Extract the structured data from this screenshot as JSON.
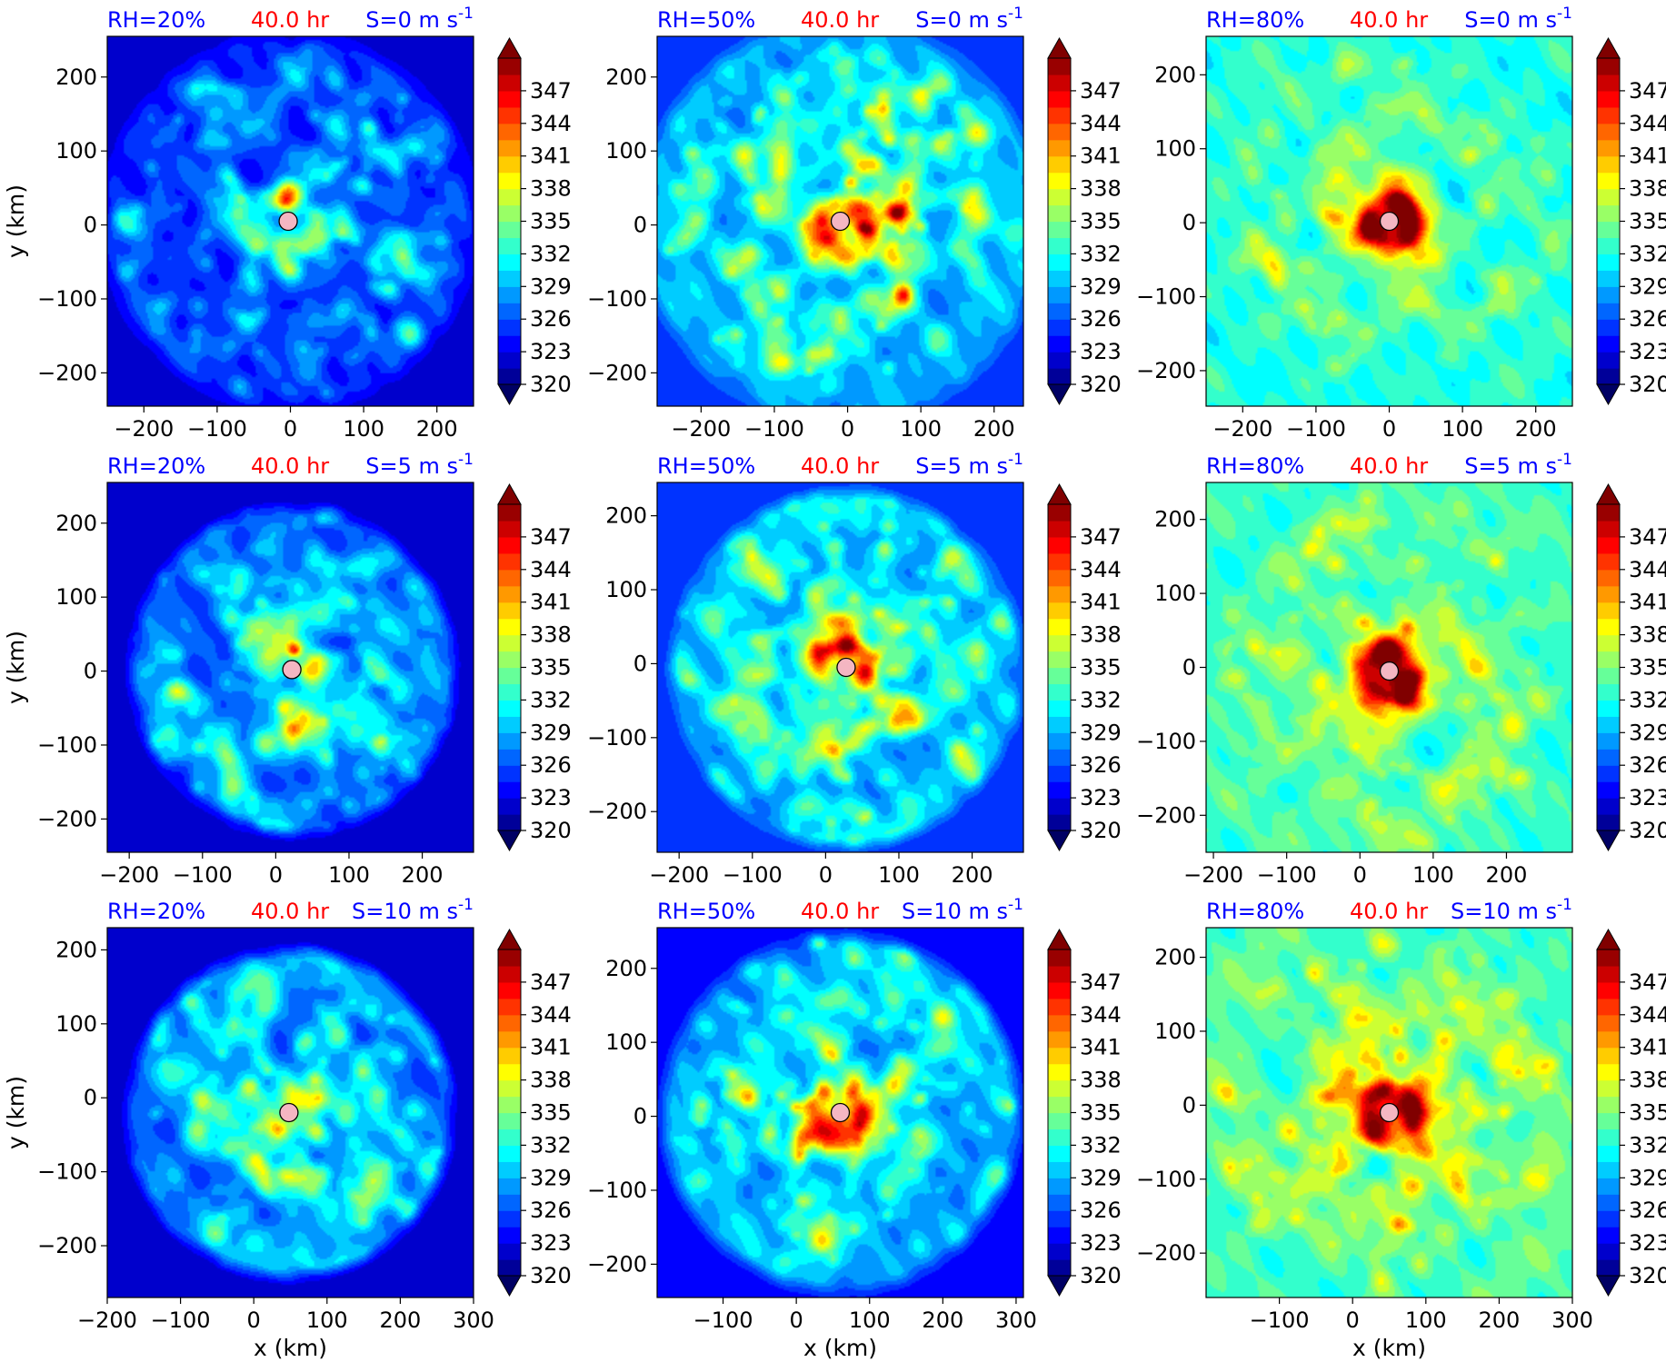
{
  "figure": {
    "time_label": "40.0 hr",
    "shear_unit_sup": "-1",
    "colorbar": {
      "min": 320,
      "max": 350,
      "tick_labels": [
        "320",
        "323",
        "326",
        "329",
        "332",
        "335",
        "338",
        "341",
        "344",
        "347"
      ],
      "extend": "both",
      "colormap": "jet"
    },
    "colors": {
      "blue_label": "#0000ff",
      "red_label": "#ff0000",
      "center_marker": "#f4b6c2"
    }
  },
  "chart_data": [
    {
      "type": "heatmap",
      "rh_label": "RH=20%",
      "time_label": "40.0 hr",
      "shear_label": "S=0 m s",
      "xlabel": "",
      "ylabel": "y (km)",
      "xlim": [
        -250,
        250
      ],
      "ylim": [
        -245,
        255
      ],
      "xticks": [
        -200,
        -100,
        0,
        100,
        200
      ],
      "yticks": [
        -200,
        -100,
        0,
        100,
        200
      ],
      "center": [
        -3,
        5
      ],
      "field": {
        "bg": 325,
        "intensity": 0.6,
        "inner_radius": 240,
        "outer_fill": 322.5,
        "eye": 330,
        "spiral": 0.4,
        "core": 0.0
      }
    },
    {
      "type": "heatmap",
      "rh_label": "RH=50%",
      "time_label": "40.0 hr",
      "shear_label": "S=0 m s",
      "xlabel": "",
      "ylabel": "",
      "xlim": [
        -260,
        240
      ],
      "ylim": [
        -245,
        255
      ],
      "xticks": [
        -200,
        -100,
        0,
        100,
        200
      ],
      "yticks": [
        -200,
        -100,
        0,
        100,
        200
      ],
      "center": [
        -10,
        5
      ],
      "field": {
        "bg": 329,
        "intensity": 0.75,
        "inner_radius": 260,
        "outer_fill": 325.5,
        "eye": 340,
        "spiral": 0.6,
        "core": 0.5
      }
    },
    {
      "type": "heatmap",
      "rh_label": "RH=80%",
      "time_label": "40.0 hr",
      "shear_label": "S=0 m s",
      "xlabel": "",
      "ylabel": "",
      "xlim": [
        -250,
        250
      ],
      "ylim": [
        -248,
        252
      ],
      "xticks": [
        -200,
        -100,
        0,
        100,
        200
      ],
      "yticks": [
        -200,
        -100,
        0,
        100,
        200
      ],
      "center": [
        0,
        2
      ],
      "field": {
        "bg": 332.2,
        "intensity": 0.35,
        "inner_radius": 400,
        "outer_fill": 332,
        "eye": 349,
        "spiral": 0.5,
        "core": 1.0
      }
    },
    {
      "type": "heatmap",
      "rh_label": "RH=20%",
      "time_label": "40.0 hr",
      "shear_label": "S=5 m s",
      "xlabel": "",
      "ylabel": "y (km)",
      "xlim": [
        -230,
        270
      ],
      "ylim": [
        -245,
        255
      ],
      "xticks": [
        -200,
        -100,
        0,
        100,
        200
      ],
      "yticks": [
        -200,
        -100,
        0,
        100,
        200
      ],
      "center": [
        22,
        2
      ],
      "field": {
        "bg": 326.5,
        "intensity": 0.6,
        "inner_radius": 210,
        "outer_fill": 321.5,
        "eye": 331,
        "spiral": 0.8,
        "core": 0.2
      }
    },
    {
      "type": "heatmap",
      "rh_label": "RH=50%",
      "time_label": "40.0 hr",
      "shear_label": "S=5 m s",
      "xlabel": "",
      "ylabel": "",
      "xlim": [
        -230,
        270
      ],
      "ylim": [
        -255,
        245
      ],
      "xticks": [
        -200,
        -100,
        0,
        100,
        200
      ],
      "yticks": [
        -200,
        -100,
        0,
        100,
        200
      ],
      "center": [
        28,
        -5
      ],
      "field": {
        "bg": 329,
        "intensity": 0.7,
        "inner_radius": 230,
        "outer_fill": 324.5,
        "eye": 336,
        "spiral": 0.8,
        "core": 0.5
      }
    },
    {
      "type": "heatmap",
      "rh_label": "RH=80%",
      "time_label": "40.0 hr",
      "shear_label": "S=5 m s",
      "xlabel": "",
      "ylabel": "",
      "xlim": [
        -210,
        290
      ],
      "ylim": [
        -250,
        250
      ],
      "xticks": [
        -200,
        -100,
        0,
        100,
        200
      ],
      "yticks": [
        -200,
        -100,
        0,
        100,
        200
      ],
      "center": [
        40,
        -5
      ],
      "field": {
        "bg": 333,
        "intensity": 0.45,
        "inner_radius": 400,
        "outer_fill": 332.5,
        "eye": 349,
        "spiral": 0.7,
        "core": 1.0
      }
    },
    {
      "type": "heatmap",
      "rh_label": "RH=20%",
      "time_label": "40.0 hr",
      "shear_label": "S=10 m s",
      "xlabel": "x (km)",
      "ylabel": "y (km)",
      "xlim": [
        -200,
        300
      ],
      "ylim": [
        -270,
        230
      ],
      "xticks": [
        -200,
        -100,
        0,
        100,
        200,
        300
      ],
      "yticks": [
        -200,
        -100,
        0,
        100,
        200
      ],
      "center": [
        48,
        -20
      ],
      "field": {
        "bg": 327.5,
        "intensity": 0.6,
        "inner_radius": 210,
        "outer_fill": 321.5,
        "eye": 335,
        "spiral": 0.9,
        "core": 0.3
      }
    },
    {
      "type": "heatmap",
      "rh_label": "RH=50%",
      "time_label": "40.0 hr",
      "shear_label": "S=10 m s",
      "xlabel": "x (km)",
      "ylabel": "",
      "xlim": [
        -190,
        310
      ],
      "ylim": [
        -245,
        255
      ],
      "xticks": [
        -100,
        0,
        100,
        200,
        300
      ],
      "yticks": [
        -200,
        -100,
        0,
        100,
        200
      ],
      "center": [
        60,
        5
      ],
      "field": {
        "bg": 328.5,
        "intensity": 0.65,
        "inner_radius": 230,
        "outer_fill": 323.5,
        "eye": 337,
        "spiral": 0.9,
        "core": 0.5
      }
    },
    {
      "type": "heatmap",
      "rh_label": "RH=80%",
      "time_label": "40.0 hr",
      "shear_label": "S=10 m s",
      "xlabel": "x (km)",
      "ylabel": "",
      "xlim": [
        -200,
        300
      ],
      "ylim": [
        -260,
        240
      ],
      "xticks": [
        -100,
        0,
        100,
        200,
        300
      ],
      "yticks": [
        -200,
        -100,
        0,
        100,
        200
      ],
      "center": [
        50,
        -10
      ],
      "field": {
        "bg": 333.5,
        "intensity": 0.5,
        "inner_radius": 400,
        "outer_fill": 333,
        "eye": 345,
        "spiral": 1.0,
        "core": 0.8
      }
    }
  ]
}
